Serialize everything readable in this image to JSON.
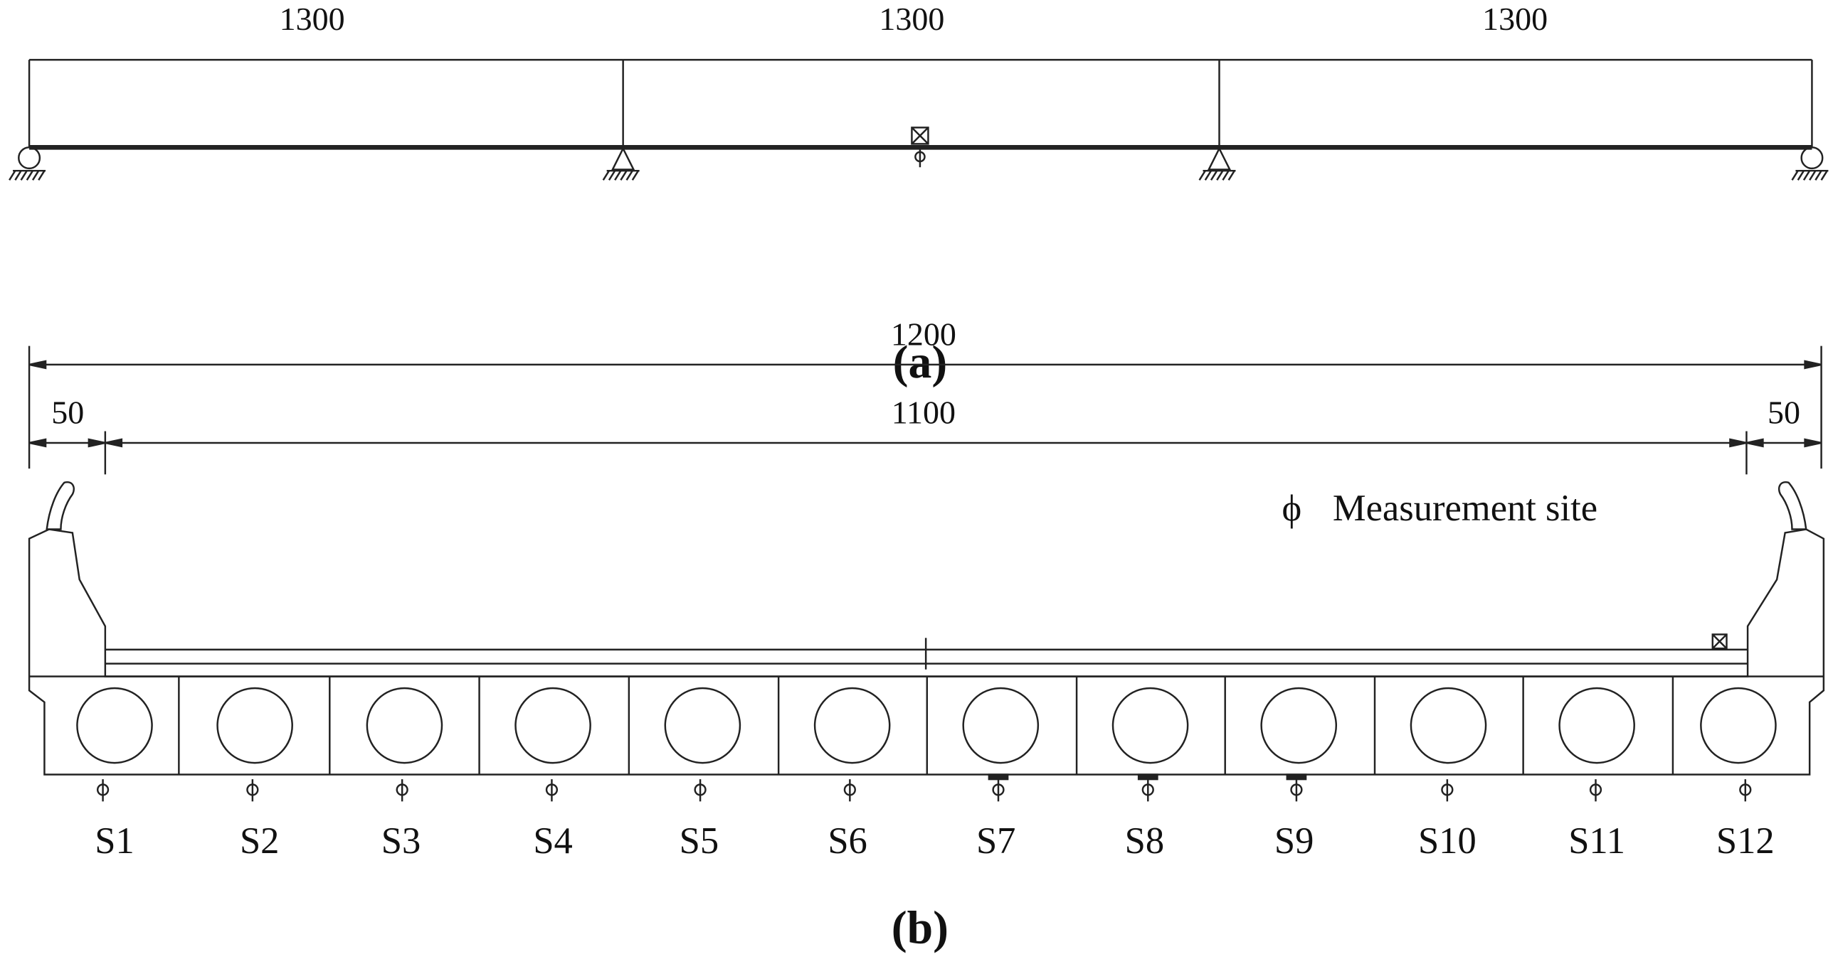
{
  "figure_a": {
    "spans": [
      "1300",
      "1300",
      "1300"
    ],
    "caption": "(a)"
  },
  "figure_b": {
    "dimensions": {
      "total": "1200",
      "left_edge": "50",
      "inner": "1100",
      "right_edge": "50"
    },
    "legend": {
      "symbol": "ϕ",
      "label": "Measurement site"
    },
    "slabs": [
      "S1",
      "S2",
      "S3",
      "S4",
      "S5",
      "S6",
      "S7",
      "S8",
      "S9",
      "S10",
      "S11",
      "S12"
    ],
    "caption": "(b)"
  }
}
